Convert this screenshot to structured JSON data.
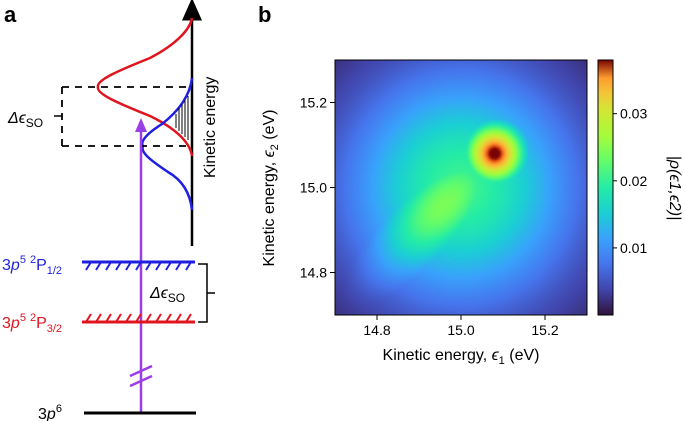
{
  "panel_a": {
    "label": "a",
    "kinetic_energy_label": "Kinetic energy",
    "delta_label": {
      "prefix": "Δϵ",
      "sub": "SO"
    },
    "states": [
      {
        "name": "p12",
        "base": "3",
        "p": "p",
        "sup1": "5",
        "sup2": "2",
        "P": "P",
        "sub": "1/2",
        "color": "#1f1fe0"
      },
      {
        "name": "p32",
        "base": "3",
        "p": "p",
        "sup1": "5",
        "sup2": "2",
        "P": "P",
        "sub": "3/2",
        "color": "#e0141e"
      }
    ],
    "ground_state": {
      "base": "3",
      "p": "p",
      "sup": "6"
    },
    "colors": {
      "blue": "#1f1fe0",
      "red": "#e0141e",
      "purple": "#9a3ee6",
      "black": "#000000"
    }
  },
  "chart_data": {
    "type": "heatmap",
    "panel_label": "b",
    "title": "",
    "xlabel": {
      "prefix": "Kinetic energy, ",
      "sym": "ϵ",
      "sub": "1",
      "suffix": " (eV)"
    },
    "ylabel": {
      "prefix": "Kinetic energy, ",
      "sym": "ϵ",
      "sub": "2",
      "suffix": " (eV)"
    },
    "xlim": [
      14.7,
      15.3
    ],
    "ylim": [
      14.7,
      15.3
    ],
    "xticks": [
      14.8,
      15.0,
      15.2
    ],
    "yticks": [
      14.8,
      15.0,
      15.2
    ],
    "colorbar": {
      "label": "|ρ(ϵ1,ϵ2)|",
      "range": [
        0,
        0.038
      ],
      "ticks": [
        0.01,
        0.02,
        0.03
      ]
    },
    "peak": {
      "x": 15.08,
      "y": 15.08,
      "value": 0.037
    },
    "shape_note": "main peak near (15.08, 15.08) with a diagonal tail toward (14.87, 14.87)"
  }
}
